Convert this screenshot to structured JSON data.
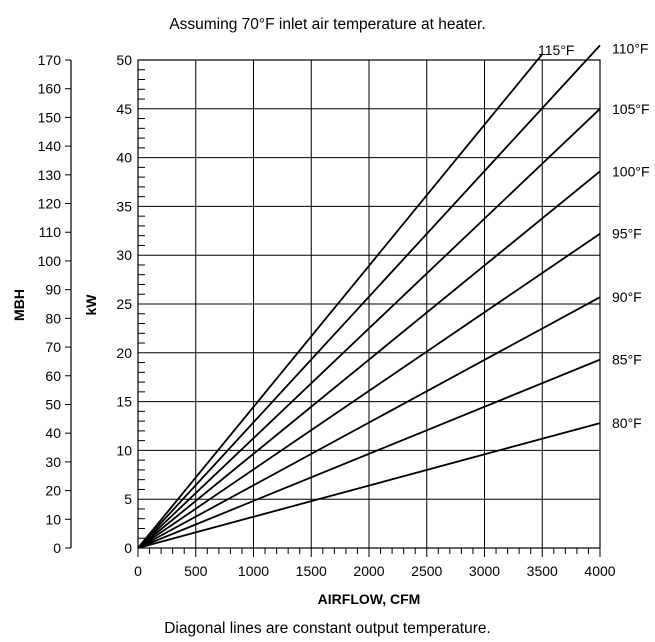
{
  "chart_data": {
    "type": "line",
    "title": "Assuming 70°F inlet air temperature at heater.",
    "caption": "Diagonal lines are constant output temperature.",
    "xlabel": "AIRFLOW, CFM",
    "ylabel_left": "MBH",
    "ylabel_right": "kW",
    "xlim": [
      0,
      4000
    ],
    "ylim_kw": [
      0,
      50
    ],
    "ylim_mbh": [
      0,
      170
    ],
    "x_ticks": [
      "0",
      "500",
      "1000",
      "1500",
      "2000",
      "2500",
      "3000",
      "3500",
      "4000"
    ],
    "kw_ticks": [
      "0",
      "5",
      "10",
      "15",
      "20",
      "25",
      "30",
      "35",
      "40",
      "45",
      "50"
    ],
    "mbh_ticks": [
      "0",
      "10",
      "20",
      "30",
      "40",
      "50",
      "60",
      "70",
      "80",
      "90",
      "100",
      "110",
      "120",
      "130",
      "140",
      "150",
      "160",
      "170"
    ],
    "grid": true,
    "series": [
      {
        "name": "80°F",
        "x": [
          0,
          4000
        ],
        "y": [
          0,
          12.8
        ]
      },
      {
        "name": "85°F",
        "x": [
          0,
          4000
        ],
        "y": [
          0,
          19.3
        ]
      },
      {
        "name": "90°F",
        "x": [
          0,
          4000
        ],
        "y": [
          0,
          25.7
        ]
      },
      {
        "name": "95°F",
        "x": [
          0,
          4000
        ],
        "y": [
          0,
          32.2
        ]
      },
      {
        "name": "100°F",
        "x": [
          0,
          4000
        ],
        "y": [
          0,
          38.6
        ]
      },
      {
        "name": "105°F",
        "x": [
          0,
          4000
        ],
        "y": [
          0,
          45.0
        ]
      },
      {
        "name": "110°F",
        "x": [
          0,
          4000
        ],
        "y": [
          0,
          51.5
        ]
      },
      {
        "name": "115°F",
        "x": [
          0,
          3500
        ],
        "y": [
          0,
          50.6
        ]
      }
    ]
  }
}
